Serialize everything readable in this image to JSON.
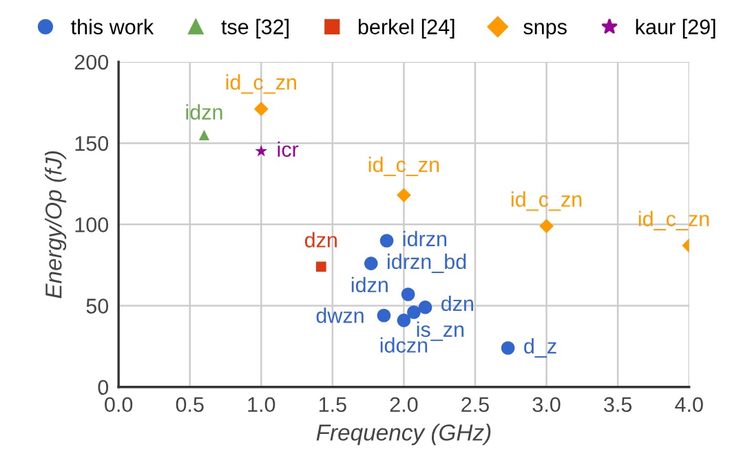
{
  "chart_data": {
    "type": "scatter",
    "xlabel": "Frequency (GHz)",
    "ylabel": "Energy/Op (fJ)",
    "xlim": [
      0,
      4
    ],
    "xticks": [
      {
        "value": 0,
        "label": "0.0"
      },
      {
        "value": 0.5,
        "label": "0.5"
      },
      {
        "value": 1,
        "label": "1.0"
      },
      {
        "value": 1.5,
        "label": "1.5"
      },
      {
        "value": 2,
        "label": "2.0"
      },
      {
        "value": 2.5,
        "label": "2.5"
      },
      {
        "value": 3,
        "label": "3.0"
      },
      {
        "value": 3.5,
        "label": "3.5"
      },
      {
        "value": 4,
        "label": "4.0"
      }
    ],
    "ylim": [
      0,
      200
    ],
    "yticks": [
      0,
      50,
      100,
      150,
      200
    ],
    "grid": true,
    "legend": "top",
    "series": [
      {
        "name": "this work",
        "color": "#3366cc",
        "marker": "circle",
        "x": [
          1.88,
          1.77,
          2.03,
          2.15,
          2.07,
          1.86,
          2.0,
          2.73
        ],
        "values": [
          90,
          76,
          57,
          49,
          46,
          44,
          41,
          24
        ]
      },
      {
        "name": "tse [32]",
        "color": "#6aa84f",
        "marker": "triangle",
        "x": [
          0.6
        ],
        "values": [
          155
        ]
      },
      {
        "name": "berkel [24]",
        "color": "#dc3912",
        "marker": "square",
        "x": [
          1.42
        ],
        "values": [
          74
        ]
      },
      {
        "name": "snps",
        "color": "#ff9900",
        "marker": "diamond",
        "x": [
          1.0,
          2.0,
          3.0,
          4.0
        ],
        "values": [
          171,
          118,
          99,
          87
        ]
      },
      {
        "name": "kaur [29]",
        "color": "#990099",
        "marker": "star",
        "x": [
          1.0
        ],
        "values": [
          145
        ]
      }
    ],
    "annotations": [
      {
        "text": "idrzn",
        "x": 1.88,
        "y": 90
      },
      {
        "text": "idrzn_bd",
        "x": 1.77,
        "y": 76
      },
      {
        "text": "idzn",
        "x": 2.03,
        "y": 57
      },
      {
        "text": "dzn",
        "x": 2.15,
        "y": 49
      },
      {
        "text": "is_zn",
        "x": 2.07,
        "y": 46
      },
      {
        "text": "dwzn",
        "x": 1.86,
        "y": 44
      },
      {
        "text": "idczn",
        "x": 2.0,
        "y": 41
      },
      {
        "text": "d_z",
        "x": 2.73,
        "y": 24
      },
      {
        "text": "idzn",
        "x": 0.6,
        "y": 155
      },
      {
        "text": "dzn",
        "x": 1.42,
        "y": 74
      },
      {
        "text": "id_c_zn",
        "x": 1.0,
        "y": 171
      },
      {
        "text": "id_c_zn",
        "x": 2.0,
        "y": 118
      },
      {
        "text": "id_c_zn",
        "x": 3.0,
        "y": 99
      },
      {
        "text": "id_c_zn",
        "x": 4.0,
        "y": 87
      },
      {
        "text": "icr",
        "x": 1.0,
        "y": 145
      }
    ]
  }
}
